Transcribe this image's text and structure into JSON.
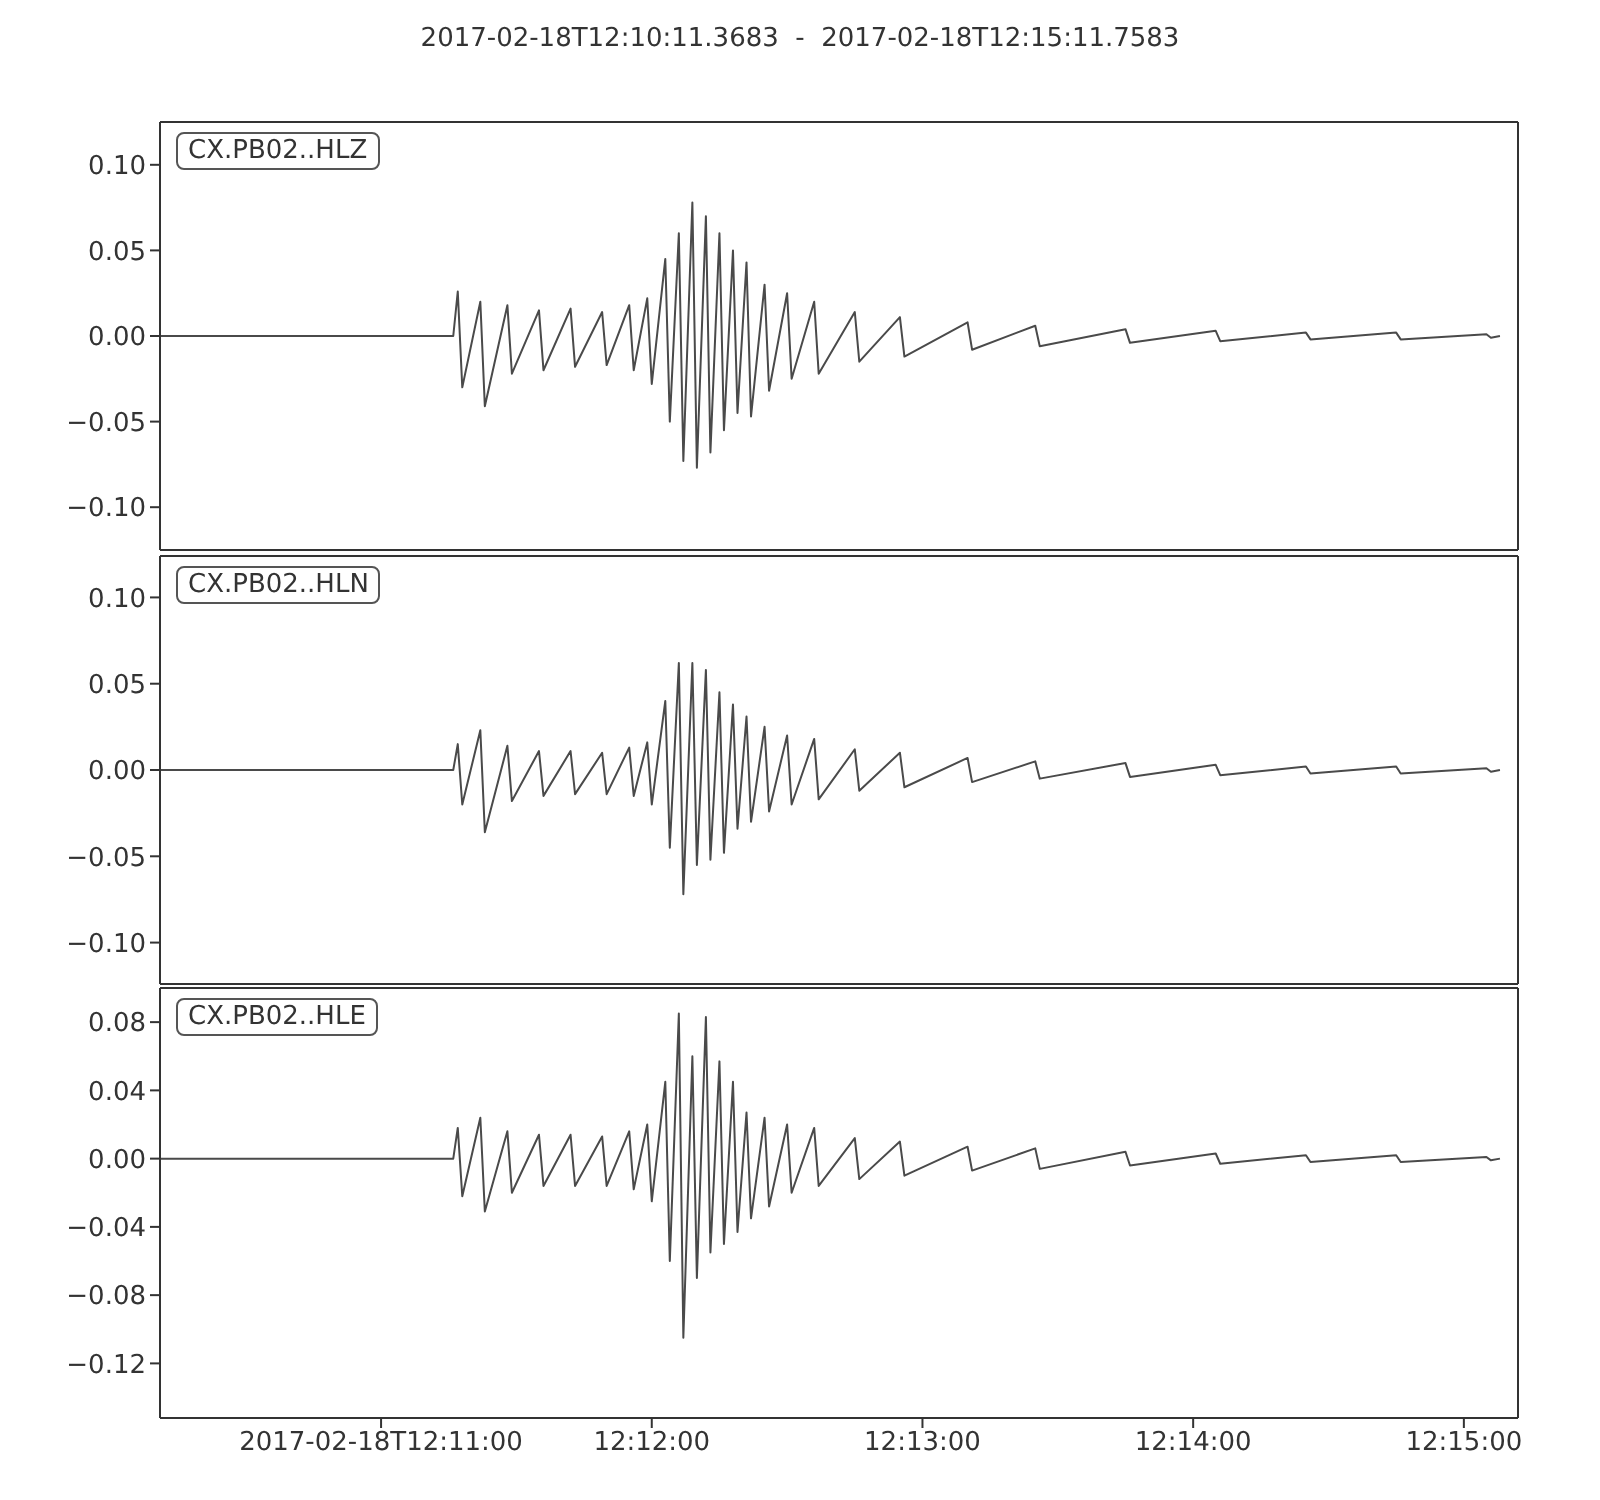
{
  "chart_data": [
    {
      "type": "line",
      "title": "2017-02-18T12:10:11.3683  -  2017-02-18T12:15:11.7583",
      "legend": "top left",
      "tick_labels": "y",
      "grid": false,
      "marker": "none",
      "line_style": "solid",
      "xlim": [
        "2017-02-18T12:10:11",
        "2017-02-18T12:15:12"
      ],
      "xticks": [
        {
          "value": "2017-02-18T12:11:00",
          "label": null
        },
        {
          "value": "2017-02-18T12:12:00",
          "label": null
        },
        {
          "value": "2017-02-18T12:13:00",
          "label": null
        },
        {
          "value": "2017-02-18T12:14:00",
          "label": null
        },
        {
          "value": "2017-02-18T12:15:00",
          "label": null
        }
      ],
      "ylim": [
        -0.125,
        0.125
      ],
      "yticks": [
        {
          "value": -0.1,
          "label": "−0.10"
        },
        {
          "value": -0.05,
          "label": "−0.05"
        },
        {
          "value": 0,
          "label": "0.00"
        },
        {
          "value": 0.05,
          "label": "0.05"
        },
        {
          "value": 0.1,
          "label": "0.10"
        }
      ],
      "x": [
        "2017-02-18T12:10:11",
        "2017-02-18T12:11:16",
        "2017-02-18T12:11:17",
        "2017-02-18T12:11:18",
        "2017-02-18T12:11:22",
        "2017-02-18T12:11:23",
        "2017-02-18T12:11:28",
        "2017-02-18T12:11:29",
        "2017-02-18T12:11:35",
        "2017-02-18T12:11:36",
        "2017-02-18T12:11:42",
        "2017-02-18T12:11:43",
        "2017-02-18T12:11:49",
        "2017-02-18T12:11:50",
        "2017-02-18T12:11:55",
        "2017-02-18T12:11:56",
        "2017-02-18T12:11:59",
        "2017-02-18T12:12:00",
        "2017-02-18T12:12:03",
        "2017-02-18T12:12:04",
        "2017-02-18T12:12:06",
        "2017-02-18T12:12:07",
        "2017-02-18T12:12:09",
        "2017-02-18T12:12:10",
        "2017-02-18T12:12:12",
        "2017-02-18T12:12:13",
        "2017-02-18T12:12:15",
        "2017-02-18T12:12:16",
        "2017-02-18T12:12:18",
        "2017-02-18T12:12:19",
        "2017-02-18T12:12:21",
        "2017-02-18T12:12:22",
        "2017-02-18T12:12:25",
        "2017-02-18T12:12:26",
        "2017-02-18T12:12:30",
        "2017-02-18T12:12:31",
        "2017-02-18T12:12:36",
        "2017-02-18T12:12:37",
        "2017-02-18T12:12:45",
        "2017-02-18T12:12:46",
        "2017-02-18T12:12:55",
        "2017-02-18T12:12:56",
        "2017-02-18T12:13:10",
        "2017-02-18T12:13:11",
        "2017-02-18T12:13:25",
        "2017-02-18T12:13:26",
        "2017-02-18T12:13:45",
        "2017-02-18T12:13:46",
        "2017-02-18T12:14:05",
        "2017-02-18T12:14:06",
        "2017-02-18T12:14:25",
        "2017-02-18T12:14:26",
        "2017-02-18T12:14:45",
        "2017-02-18T12:14:46",
        "2017-02-18T12:15:05",
        "2017-02-18T12:15:06",
        "2017-02-18T12:15:08"
      ],
      "series": [
        {
          "name": "CX.PB02..HLZ",
          "color": "#4a4a4a",
          "values": [
            0,
            0,
            0.026,
            -0.03,
            0.02,
            -0.041,
            0.018,
            -0.022,
            0.015,
            -0.02,
            0.016,
            -0.018,
            0.014,
            -0.017,
            0.018,
            -0.02,
            0.022,
            -0.028,
            0.045,
            -0.05,
            0.06,
            -0.073,
            0.078,
            -0.077,
            0.07,
            -0.068,
            0.06,
            -0.055,
            0.05,
            -0.045,
            0.043,
            -0.047,
            0.03,
            -0.032,
            0.025,
            -0.025,
            0.02,
            -0.022,
            0.014,
            -0.015,
            0.011,
            -0.012,
            0.008,
            -0.008,
            0.006,
            -0.006,
            0.004,
            -0.004,
            0.003,
            -0.003,
            0.002,
            -0.002,
            0.002,
            -0.002,
            0.001,
            -0.001,
            0
          ]
        }
      ]
    },
    {
      "type": "line",
      "legend": "top left",
      "tick_labels": "y",
      "grid": false,
      "marker": "none",
      "line_style": "solid",
      "xlim": [
        "2017-02-18T12:10:11",
        "2017-02-18T12:15:12"
      ],
      "xticks": [
        {
          "value": "2017-02-18T12:11:00",
          "label": null
        },
        {
          "value": "2017-02-18T12:12:00",
          "label": null
        },
        {
          "value": "2017-02-18T12:13:00",
          "label": null
        },
        {
          "value": "2017-02-18T12:14:00",
          "label": null
        },
        {
          "value": "2017-02-18T12:15:00",
          "label": null
        }
      ],
      "ylim": [
        -0.124,
        0.124
      ],
      "yticks": [
        {
          "value": -0.1,
          "label": "−0.10"
        },
        {
          "value": -0.05,
          "label": "−0.05"
        },
        {
          "value": 0,
          "label": "0.00"
        },
        {
          "value": 0.05,
          "label": "0.05"
        },
        {
          "value": 0.1,
          "label": "0.10"
        }
      ],
      "x": [
        "2017-02-18T12:10:11",
        "2017-02-18T12:11:16",
        "2017-02-18T12:11:17",
        "2017-02-18T12:11:18",
        "2017-02-18T12:11:22",
        "2017-02-18T12:11:23",
        "2017-02-18T12:11:28",
        "2017-02-18T12:11:29",
        "2017-02-18T12:11:35",
        "2017-02-18T12:11:36",
        "2017-02-18T12:11:42",
        "2017-02-18T12:11:43",
        "2017-02-18T12:11:49",
        "2017-02-18T12:11:50",
        "2017-02-18T12:11:55",
        "2017-02-18T12:11:56",
        "2017-02-18T12:11:59",
        "2017-02-18T12:12:00",
        "2017-02-18T12:12:03",
        "2017-02-18T12:12:04",
        "2017-02-18T12:12:06",
        "2017-02-18T12:12:07",
        "2017-02-18T12:12:09",
        "2017-02-18T12:12:10",
        "2017-02-18T12:12:12",
        "2017-02-18T12:12:13",
        "2017-02-18T12:12:15",
        "2017-02-18T12:12:16",
        "2017-02-18T12:12:18",
        "2017-02-18T12:12:19",
        "2017-02-18T12:12:21",
        "2017-02-18T12:12:22",
        "2017-02-18T12:12:25",
        "2017-02-18T12:12:26",
        "2017-02-18T12:12:30",
        "2017-02-18T12:12:31",
        "2017-02-18T12:12:36",
        "2017-02-18T12:12:37",
        "2017-02-18T12:12:45",
        "2017-02-18T12:12:46",
        "2017-02-18T12:12:55",
        "2017-02-18T12:12:56",
        "2017-02-18T12:13:10",
        "2017-02-18T12:13:11",
        "2017-02-18T12:13:25",
        "2017-02-18T12:13:26",
        "2017-02-18T12:13:45",
        "2017-02-18T12:13:46",
        "2017-02-18T12:14:05",
        "2017-02-18T12:14:06",
        "2017-02-18T12:14:25",
        "2017-02-18T12:14:26",
        "2017-02-18T12:14:45",
        "2017-02-18T12:14:46",
        "2017-02-18T12:15:05",
        "2017-02-18T12:15:06",
        "2017-02-18T12:15:08"
      ],
      "series": [
        {
          "name": "CX.PB02..HLN",
          "color": "#4a4a4a",
          "values": [
            0,
            0,
            0.015,
            -0.02,
            0.023,
            -0.036,
            0.014,
            -0.018,
            0.011,
            -0.015,
            0.011,
            -0.014,
            0.01,
            -0.014,
            0.013,
            -0.015,
            0.016,
            -0.02,
            0.04,
            -0.045,
            0.062,
            -0.072,
            0.062,
            -0.055,
            0.058,
            -0.052,
            0.045,
            -0.048,
            0.038,
            -0.034,
            0.031,
            -0.03,
            0.025,
            -0.024,
            0.02,
            -0.02,
            0.018,
            -0.017,
            0.012,
            -0.012,
            0.01,
            -0.01,
            0.007,
            -0.007,
            0.005,
            -0.005,
            0.004,
            -0.004,
            0.003,
            -0.003,
            0.002,
            -0.002,
            0.002,
            -0.002,
            0.001,
            -0.001,
            0
          ]
        }
      ]
    },
    {
      "type": "line",
      "legend": "top left",
      "grid": false,
      "marker": "none",
      "line_style": "solid",
      "xlim": [
        "2017-02-18T12:10:11",
        "2017-02-18T12:15:12"
      ],
      "xticks": [
        {
          "value": "2017-02-18T12:11:00",
          "label": "2017-02-18T12:11:00"
        },
        {
          "value": "2017-02-18T12:12:00",
          "label": "12:12:00"
        },
        {
          "value": "2017-02-18T12:13:00",
          "label": "12:13:00"
        },
        {
          "value": "2017-02-18T12:14:00",
          "label": "12:14:00"
        },
        {
          "value": "2017-02-18T12:15:00",
          "label": "12:15:00"
        }
      ],
      "ylim": [
        -0.152,
        0.1
      ],
      "yticks": [
        {
          "value": -0.12,
          "label": "−0.12"
        },
        {
          "value": -0.08,
          "label": "−0.08"
        },
        {
          "value": -0.04,
          "label": "−0.04"
        },
        {
          "value": 0,
          "label": "0.00"
        },
        {
          "value": 0.04,
          "label": "0.04"
        },
        {
          "value": 0.08,
          "label": "0.08"
        }
      ],
      "x": [
        "2017-02-18T12:10:11",
        "2017-02-18T12:11:16",
        "2017-02-18T12:11:17",
        "2017-02-18T12:11:18",
        "2017-02-18T12:11:22",
        "2017-02-18T12:11:23",
        "2017-02-18T12:11:28",
        "2017-02-18T12:11:29",
        "2017-02-18T12:11:35",
        "2017-02-18T12:11:36",
        "2017-02-18T12:11:42",
        "2017-02-18T12:11:43",
        "2017-02-18T12:11:49",
        "2017-02-18T12:11:50",
        "2017-02-18T12:11:55",
        "2017-02-18T12:11:56",
        "2017-02-18T12:11:59",
        "2017-02-18T12:12:00",
        "2017-02-18T12:12:03",
        "2017-02-18T12:12:04",
        "2017-02-18T12:12:06",
        "2017-02-18T12:12:07",
        "2017-02-18T12:12:09",
        "2017-02-18T12:12:10",
        "2017-02-18T12:12:12",
        "2017-02-18T12:12:13",
        "2017-02-18T12:12:15",
        "2017-02-18T12:12:16",
        "2017-02-18T12:12:18",
        "2017-02-18T12:12:19",
        "2017-02-18T12:12:21",
        "2017-02-18T12:12:22",
        "2017-02-18T12:12:25",
        "2017-02-18T12:12:26",
        "2017-02-18T12:12:30",
        "2017-02-18T12:12:31",
        "2017-02-18T12:12:36",
        "2017-02-18T12:12:37",
        "2017-02-18T12:12:45",
        "2017-02-18T12:12:46",
        "2017-02-18T12:12:55",
        "2017-02-18T12:12:56",
        "2017-02-18T12:13:10",
        "2017-02-18T12:13:11",
        "2017-02-18T12:13:25",
        "2017-02-18T12:13:26",
        "2017-02-18T12:13:45",
        "2017-02-18T12:13:46",
        "2017-02-18T12:14:05",
        "2017-02-18T12:14:06",
        "2017-02-18T12:14:25",
        "2017-02-18T12:14:26",
        "2017-02-18T12:14:45",
        "2017-02-18T12:14:46",
        "2017-02-18T12:15:05",
        "2017-02-18T12:15:06",
        "2017-02-18T12:15:08"
      ],
      "series": [
        {
          "name": "CX.PB02..HLE",
          "color": "#4a4a4a",
          "values": [
            0,
            0,
            0.018,
            -0.022,
            0.024,
            -0.031,
            0.016,
            -0.02,
            0.014,
            -0.016,
            0.014,
            -0.016,
            0.013,
            -0.016,
            0.016,
            -0.018,
            0.02,
            -0.025,
            0.045,
            -0.06,
            0.085,
            -0.105,
            0.06,
            -0.07,
            0.083,
            -0.055,
            0.057,
            -0.05,
            0.045,
            -0.043,
            0.027,
            -0.035,
            0.024,
            -0.028,
            0.02,
            -0.02,
            0.018,
            -0.016,
            0.012,
            -0.012,
            0.01,
            -0.01,
            0.007,
            -0.007,
            0.006,
            -0.006,
            0.004,
            -0.004,
            0.003,
            -0.003,
            0.002,
            -0.002,
            0.002,
            -0.002,
            0.001,
            -0.001,
            0
          ]
        }
      ]
    }
  ]
}
